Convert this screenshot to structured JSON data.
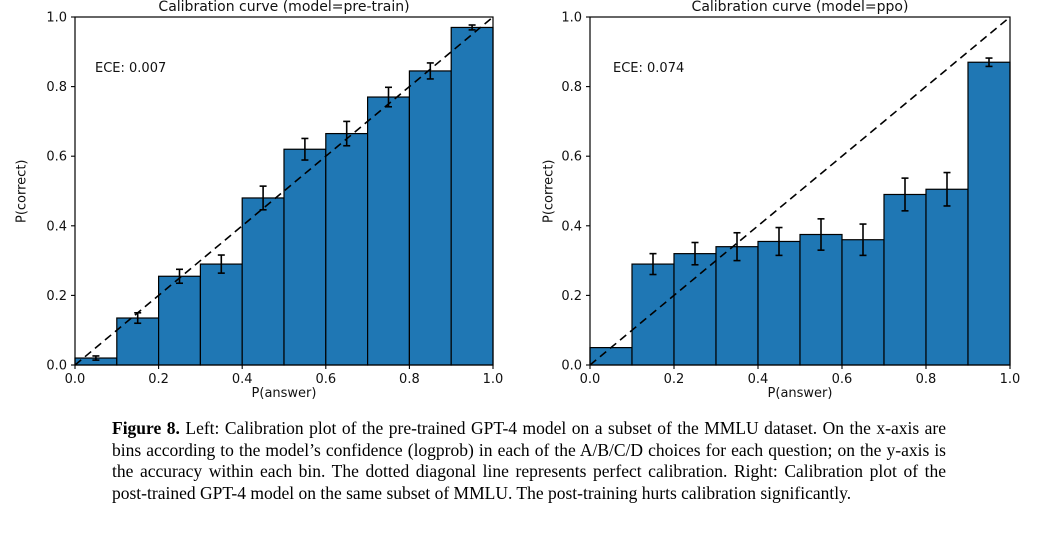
{
  "figure": {
    "caption": {
      "label": "Figure 8.",
      "text": "Left: Calibration plot of the pre-trained GPT-4 model on a subset of the MMLU dataset. On the x-axis are bins according to the model’s confidence (logprob) in each of the A/B/C/D choices for each question; on the y-axis is the accuracy within each bin. The dotted diagonal line represents perfect calibration. Right: Calibration plot of the post-trained GPT-4 model on the same subset of MMLU. The post-training hurts calibration significantly."
    }
  },
  "colors": {
    "bar_fill": "#1f77b4",
    "bar_edge": "#000000",
    "diagonal": "#000000",
    "text": "#111111"
  },
  "chart_data": [
    {
      "type": "bar",
      "title": "Calibration curve (model=pre-train)",
      "annotation": "ECE: 0.007",
      "ece": 0.007,
      "xlabel": "P(answer)",
      "ylabel": "P(correct)",
      "xlim": [
        0.0,
        1.0
      ],
      "ylim": [
        0.0,
        1.0
      ],
      "grid": false,
      "legend": false,
      "diagonal_reference_line": true,
      "bin_edges": [
        0.0,
        0.1,
        0.2,
        0.3,
        0.4,
        0.5,
        0.6,
        0.7,
        0.8,
        0.9,
        1.0
      ],
      "values": [
        0.02,
        0.135,
        0.255,
        0.29,
        0.48,
        0.62,
        0.665,
        0.77,
        0.845,
        0.97
      ],
      "errors": [
        0.006,
        0.015,
        0.02,
        0.026,
        0.034,
        0.031,
        0.035,
        0.028,
        0.023,
        0.007
      ],
      "xtick_labels": [
        "0.0",
        "0.2",
        "0.4",
        "0.6",
        "0.8",
        "1.0"
      ],
      "ytick_labels": [
        "0.0",
        "0.2",
        "0.4",
        "0.6",
        "0.8",
        "1.0"
      ]
    },
    {
      "type": "bar",
      "title": "Calibration curve (model=ppo)",
      "annotation": "ECE: 0.074",
      "ece": 0.074,
      "xlabel": "P(answer)",
      "ylabel": "P(correct)",
      "xlim": [
        0.0,
        1.0
      ],
      "ylim": [
        0.0,
        1.0
      ],
      "grid": false,
      "legend": false,
      "diagonal_reference_line": true,
      "bin_edges": [
        0.0,
        0.1,
        0.2,
        0.3,
        0.4,
        0.5,
        0.6,
        0.7,
        0.8,
        0.9,
        1.0
      ],
      "values": [
        0.05,
        0.29,
        0.32,
        0.34,
        0.355,
        0.375,
        0.36,
        0.49,
        0.505,
        0.87
      ],
      "errors": [
        0,
        0.03,
        0.032,
        0.04,
        0.04,
        0.045,
        0.045,
        0.047,
        0.048,
        0.012
      ],
      "xtick_labels": [
        "0.0",
        "0.2",
        "0.4",
        "0.6",
        "0.8",
        "1.0"
      ],
      "ytick_labels": [
        "0.0",
        "0.2",
        "0.4",
        "0.6",
        "0.8",
        "1.0"
      ]
    }
  ]
}
